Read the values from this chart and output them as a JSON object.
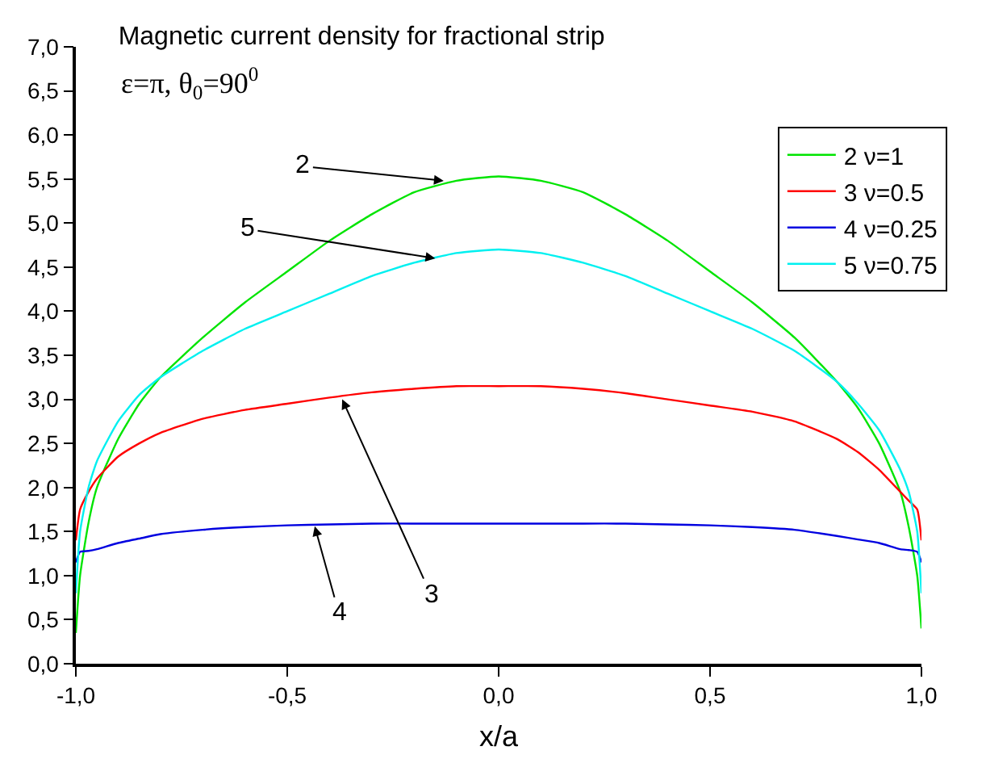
{
  "chart_data": {
    "type": "line",
    "title": "Magnetic current density for fractional strip",
    "subtitle": "ε=π, θ$_{0}$=90$^{0}$",
    "xlabel": "x/a",
    "x": [
      -1,
      -0.99,
      -0.97,
      -0.95,
      -0.9,
      -0.85,
      -0.8,
      -0.7,
      -0.6,
      -0.5,
      -0.4,
      -0.3,
      -0.2,
      -0.1,
      0,
      0.1,
      0.2,
      0.3,
      0.4,
      0.5,
      0.6,
      0.7,
      0.8,
      0.85,
      0.9,
      0.95,
      0.97,
      0.99,
      1
    ],
    "series": [
      {
        "name": "2 ν=1",
        "color": "#00e400",
        "values": [
          0.35,
          1.0,
          1.6,
          2.0,
          2.55,
          2.95,
          3.25,
          3.7,
          4.1,
          4.45,
          4.8,
          5.1,
          5.35,
          5.48,
          5.53,
          5.48,
          5.35,
          5.1,
          4.8,
          4.45,
          4.1,
          3.7,
          3.2,
          2.9,
          2.5,
          1.95,
          1.55,
          1.0,
          0.4
        ]
      },
      {
        "name": "3 ν=0.5",
        "color": "#ff0000",
        "values": [
          1.4,
          1.75,
          1.95,
          2.1,
          2.35,
          2.5,
          2.62,
          2.78,
          2.88,
          2.95,
          3.02,
          3.08,
          3.12,
          3.15,
          3.15,
          3.15,
          3.12,
          3.07,
          3.0,
          2.93,
          2.86,
          2.75,
          2.55,
          2.4,
          2.2,
          1.95,
          1.85,
          1.75,
          1.4
        ]
      },
      {
        "name": "4 ν=0.25",
        "color": "#0000e0",
        "values": [
          1.15,
          1.27,
          1.28,
          1.3,
          1.37,
          1.42,
          1.47,
          1.52,
          1.55,
          1.57,
          1.58,
          1.59,
          1.59,
          1.59,
          1.59,
          1.59,
          1.59,
          1.59,
          1.58,
          1.57,
          1.55,
          1.52,
          1.45,
          1.41,
          1.37,
          1.3,
          1.29,
          1.27,
          1.15
        ]
      },
      {
        "name": "5 ν=0.75",
        "color": "#00f0f0",
        "values": [
          0.8,
          1.5,
          2.0,
          2.3,
          2.75,
          3.05,
          3.25,
          3.55,
          3.8,
          4.0,
          4.2,
          4.4,
          4.55,
          4.66,
          4.7,
          4.66,
          4.55,
          4.4,
          4.2,
          4.0,
          3.8,
          3.55,
          3.2,
          2.95,
          2.65,
          2.2,
          1.95,
          1.5,
          0.8
        ]
      }
    ],
    "xlim": [
      -1,
      1
    ],
    "xticks": [
      {
        "value": -1,
        "label": "-1,0"
      },
      {
        "value": -0.5,
        "label": "-0,5"
      },
      {
        "value": 0,
        "label": "0,0"
      },
      {
        "value": 0.5,
        "label": "0,5"
      },
      {
        "value": 1,
        "label": "1,0"
      }
    ],
    "ylim": [
      0,
      7
    ],
    "yticks": [
      {
        "value": 0,
        "label": "0,0"
      },
      {
        "value": 0.5,
        "label": "0,5"
      },
      {
        "value": 1,
        "label": "1,0"
      },
      {
        "value": 1.5,
        "label": "1,5"
      },
      {
        "value": 2,
        "label": "2,0"
      },
      {
        "value": 2.5,
        "label": "2,5"
      },
      {
        "value": 3,
        "label": "3,0"
      },
      {
        "value": 3.5,
        "label": "3,5"
      },
      {
        "value": 4,
        "label": "4,0"
      },
      {
        "value": 4.5,
        "label": "4,5"
      },
      {
        "value": 5,
        "label": "5,0"
      },
      {
        "value": 5.5,
        "label": "5,5"
      },
      {
        "value": 6,
        "label": "6,0"
      },
      {
        "value": 6.5,
        "label": "6,5"
      },
      {
        "value": 7,
        "label": "7,0"
      }
    ],
    "annotations": [
      {
        "text": "2",
        "x": -0.13,
        "y": 5.48
      },
      {
        "text": "5",
        "x": -0.15,
        "y": 4.6
      },
      {
        "text": "3",
        "x": -0.37,
        "y": 3.0
      },
      {
        "text": "4",
        "x": -0.435,
        "y": 1.56
      }
    ],
    "grid": false,
    "legend": "top right",
    "marker": "none",
    "line_style": "solid"
  }
}
